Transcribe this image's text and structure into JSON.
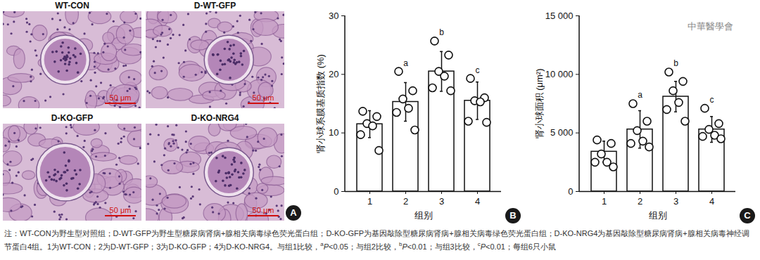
{
  "panel_a": {
    "panel": "A",
    "images": [
      {
        "title": "WT-CON",
        "scale_bar": "50 μm"
      },
      {
        "title": "D-WT-GFP",
        "scale_bar": "50 μm"
      },
      {
        "title": "D-KO-GFP",
        "scale_bar": "50 μm"
      },
      {
        "title": "D-KO-NRG4",
        "scale_bar": "50 μm"
      }
    ]
  },
  "chart_data": [
    {
      "type": "bar",
      "panel": "B",
      "categories": [
        "1",
        "2",
        "3",
        "4"
      ],
      "values": [
        11.5,
        15.3,
        20.5,
        15.5
      ],
      "error": [
        2.3,
        3.3,
        3.4,
        3.2
      ],
      "points": [
        [
          13.7,
          12.8,
          11.6,
          11.2,
          9.7,
          7.0
        ],
        [
          20.5,
          17.2,
          15.8,
          14.2,
          13.5,
          10.5
        ],
        [
          25.7,
          23.3,
          20.5,
          19.7,
          17.7,
          17.2
        ],
        [
          19.3,
          16.0,
          15.5,
          15.3,
          12.0,
          11.8
        ]
      ],
      "annotations": [
        null,
        "a",
        "b",
        "c"
      ],
      "x_label": "组别",
      "y_label": "肾小球系膜基质指数 (%)",
      "ylim": [
        0,
        30
      ],
      "yticks": [
        0,
        10,
        20,
        30
      ],
      "color": "#ffffff"
    },
    {
      "type": "bar",
      "panel": "C",
      "categories": [
        "1",
        "2",
        "3",
        "4"
      ],
      "values": [
        3400,
        5300,
        8100,
        5300
      ],
      "error": [
        900,
        1600,
        1300,
        1100
      ],
      "points": [
        [
          4400,
          4100,
          3200,
          2500,
          2500,
          2100
        ],
        [
          7500,
          6000,
          5200,
          4300,
          4100,
          3800
        ],
        [
          10200,
          9400,
          8600,
          7600,
          7000,
          6000
        ],
        [
          7100,
          5800,
          5300,
          4800,
          4700,
          4500
        ]
      ],
      "annotations": [
        null,
        "a",
        "b",
        "c"
      ],
      "x_label": "组别",
      "y_label": "肾小球面积 (μm²)",
      "ylim": [
        0,
        15000
      ],
      "yticks": [
        0,
        {
          "value": 5000,
          "label": "5 000"
        },
        {
          "value": 10000,
          "label": "10 000"
        },
        {
          "value": 15000,
          "label": "15 000"
        }
      ],
      "color": "#ffffff",
      "watermark": "中華醫學會"
    }
  ],
  "note": [
    "注：WT-CON为野生型对照组；D-WT-GFP为野生型糖尿病肾病+腺相关病毒绿色荧光蛋白组；D-KO-GFP为基因敲除型糖尿病肾病+腺相关病毒绿色荧光蛋白组；D-KO-NRG4为基因敲除型糖尿病肾病+腺相关病毒神经调节蛋白4组。1为WT-CON；2为D-WT-GFP；3为D-KO-GFP；4为D-KO-NRG4。与组1比较，",
    {
      "sup": "a"
    },
    {
      "italic": "P"
    },
    "<0.05；与组2比较，",
    {
      "sup": "b"
    },
    {
      "italic": "P"
    },
    "<0.01；与组3比较，",
    {
      "sup": "c"
    },
    {
      "italic": "P"
    },
    "<0.01；每组6只小鼠"
  ]
}
